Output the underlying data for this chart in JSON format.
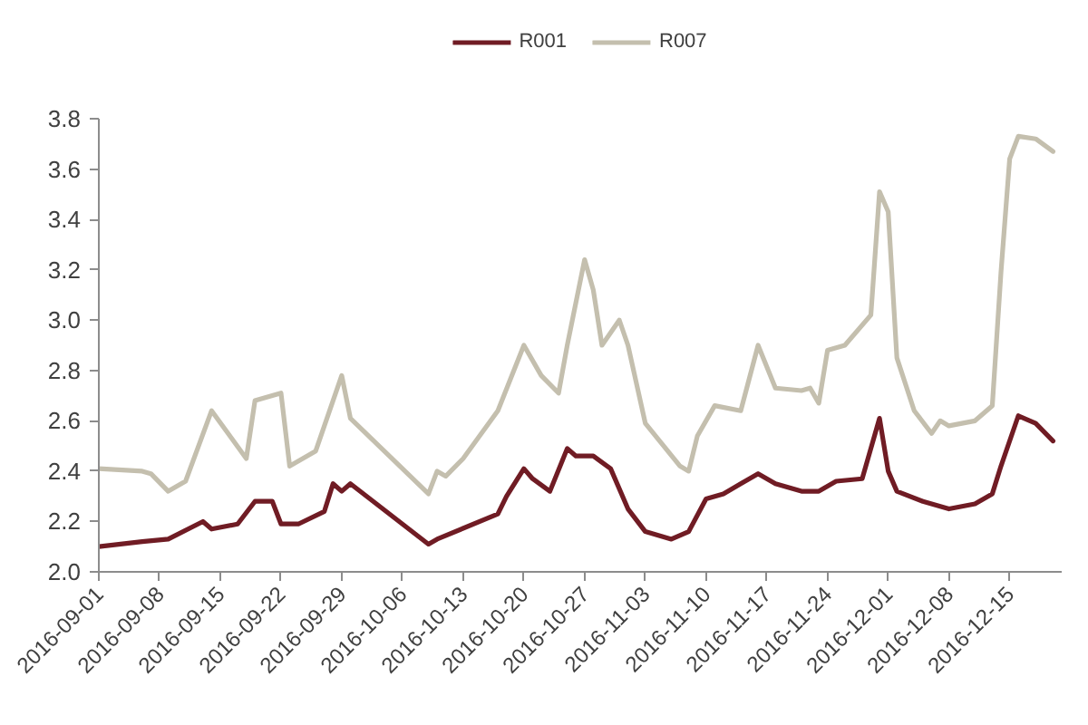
{
  "chart_data": {
    "type": "line",
    "xlim": [
      "2016-09-01",
      "2016-12-21"
    ],
    "xticks": [
      "2016-09-01",
      "2016-09-08",
      "2016-09-15",
      "2016-09-22",
      "2016-09-29",
      "2016-10-06",
      "2016-10-13",
      "2016-10-20",
      "2016-10-27",
      "2016-11-03",
      "2016-11-10",
      "2016-11-17",
      "2016-11-24",
      "2016-12-01",
      "2016-12-08",
      "2016-12-15"
    ],
    "ylim": [
      2.0,
      3.8
    ],
    "yticks": [
      {
        "value": 2,
        "label": "2.0"
      },
      2.2,
      2.4,
      2.6,
      2.8,
      {
        "value": 3,
        "label": "3.0"
      },
      3.2,
      3.4,
      3.6,
      3.8
    ],
    "grid": false,
    "legend": "top",
    "line_style": "solid",
    "series": [
      {
        "name": "R001",
        "color": "#701c24",
        "x": [
          "2016-09-01",
          "2016-09-06",
          "2016-09-09",
          "2016-09-13",
          "2016-09-14",
          "2016-09-17",
          "2016-09-19",
          "2016-09-21",
          "2016-09-22",
          "2016-09-24",
          "2016-09-27",
          "2016-09-28",
          "2016-09-29",
          "2016-09-30",
          "2016-10-09",
          "2016-10-10",
          "2016-10-17",
          "2016-10-18",
          "2016-10-20",
          "2016-10-21",
          "2016-10-23",
          "2016-10-25",
          "2016-10-26",
          "2016-10-28",
          "2016-10-30",
          "2016-11-01",
          "2016-11-03",
          "2016-11-06",
          "2016-11-08",
          "2016-11-10",
          "2016-11-12",
          "2016-11-14",
          "2016-11-16",
          "2016-11-18",
          "2016-11-21",
          "2016-11-23",
          "2016-11-25",
          "2016-11-28",
          "2016-11-30",
          "2016-12-01",
          "2016-12-02",
          "2016-12-05",
          "2016-12-08",
          "2016-12-11",
          "2016-12-13",
          "2016-12-14",
          "2016-12-16",
          "2016-12-18",
          "2016-12-20"
        ],
        "values": [
          2.1,
          2.12,
          2.13,
          2.2,
          2.17,
          2.19,
          2.28,
          2.28,
          2.19,
          2.19,
          2.24,
          2.35,
          2.32,
          2.35,
          2.11,
          2.13,
          2.23,
          2.3,
          2.41,
          2.37,
          2.32,
          2.49,
          2.46,
          2.46,
          2.41,
          2.25,
          2.16,
          2.13,
          2.16,
          2.29,
          2.31,
          2.35,
          2.39,
          2.35,
          2.32,
          2.32,
          2.36,
          2.37,
          2.61,
          2.4,
          2.32,
          2.28,
          2.25,
          2.27,
          2.31,
          2.42,
          2.62,
          2.59,
          2.52
        ]
      },
      {
        "name": "R007",
        "color": "#c4bfae",
        "x": [
          "2016-09-01",
          "2016-09-06",
          "2016-09-07",
          "2016-09-09",
          "2016-09-11",
          "2016-09-14",
          "2016-09-18",
          "2016-09-19",
          "2016-09-22",
          "2016-09-23",
          "2016-09-26",
          "2016-09-29",
          "2016-09-30",
          "2016-10-09",
          "2016-10-10",
          "2016-10-11",
          "2016-10-13",
          "2016-10-17",
          "2016-10-20",
          "2016-10-22",
          "2016-10-24",
          "2016-10-25",
          "2016-10-27",
          "2016-10-28",
          "2016-10-29",
          "2016-10-31",
          "2016-11-01",
          "2016-11-03",
          "2016-11-07",
          "2016-11-08",
          "2016-11-09",
          "2016-11-11",
          "2016-11-14",
          "2016-11-16",
          "2016-11-18",
          "2016-11-21",
          "2016-11-22",
          "2016-11-23",
          "2016-11-24",
          "2016-11-26",
          "2016-11-29",
          "2016-11-30",
          "2016-12-01",
          "2016-12-02",
          "2016-12-04",
          "2016-12-06",
          "2016-12-07",
          "2016-12-08",
          "2016-12-11",
          "2016-12-13",
          "2016-12-14",
          "2016-12-15",
          "2016-12-16",
          "2016-12-18",
          "2016-12-20"
        ],
        "values": [
          2.41,
          2.4,
          2.39,
          2.32,
          2.36,
          2.64,
          2.45,
          2.68,
          2.71,
          2.42,
          2.48,
          2.78,
          2.61,
          2.31,
          2.4,
          2.38,
          2.45,
          2.64,
          2.9,
          2.78,
          2.71,
          2.9,
          3.24,
          3.12,
          2.9,
          3.0,
          2.9,
          2.59,
          2.42,
          2.4,
          2.54,
          2.66,
          2.64,
          2.9,
          2.73,
          2.72,
          2.73,
          2.67,
          2.88,
          2.9,
          3.02,
          3.51,
          3.43,
          2.85,
          2.64,
          2.55,
          2.6,
          2.58,
          2.6,
          2.66,
          3.19,
          3.64,
          3.73,
          3.72,
          3.67
        ]
      }
    ]
  }
}
